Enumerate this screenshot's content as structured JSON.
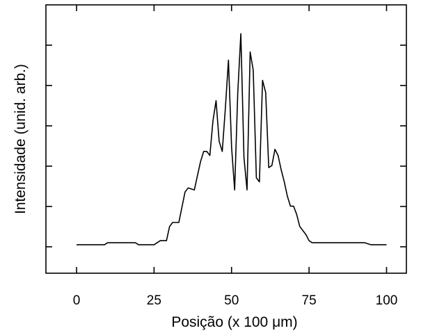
{
  "chart_data": {
    "type": "line",
    "title": "",
    "xlabel": "Posição (x 100 μm)",
    "ylabel": "Intensidade (unid. arb.)",
    "xlim": [
      -10,
      104
    ],
    "ylim": [
      0,
      1.1
    ],
    "x_ticks": [
      0,
      25,
      50,
      75,
      100
    ],
    "x_tick_labels": [
      "0",
      "25",
      "50",
      "75",
      "100"
    ],
    "y_ticks_count": 6,
    "grid": false,
    "legend": "none",
    "series": [
      {
        "color": "#000000",
        "x": [
          0,
          5,
          9,
          10,
          14,
          19,
          20,
          25,
          27,
          29,
          30,
          31,
          33,
          35,
          36,
          38,
          39,
          40,
          41,
          42,
          43,
          44,
          45,
          46,
          47,
          48,
          49,
          50,
          51,
          52,
          53,
          54,
          55,
          56,
          57,
          58,
          59,
          60,
          61,
          62,
          63,
          64,
          65,
          66,
          67,
          68,
          69,
          70,
          71,
          72,
          73,
          74,
          75,
          76,
          77,
          78,
          79,
          80,
          83,
          90,
          93,
          95,
          100
        ],
        "y": [
          0.01,
          0.01,
          0.01,
          0.02,
          0.02,
          0.02,
          0.01,
          0.01,
          0.03,
          0.03,
          0.1,
          0.12,
          0.12,
          0.27,
          0.29,
          0.28,
          0.35,
          0.42,
          0.47,
          0.47,
          0.45,
          0.62,
          0.72,
          0.52,
          0.47,
          0.68,
          0.92,
          0.49,
          0.28,
          0.76,
          1.05,
          0.44,
          0.28,
          0.96,
          0.87,
          0.34,
          0.32,
          0.82,
          0.76,
          0.39,
          0.4,
          0.48,
          0.45,
          0.38,
          0.32,
          0.25,
          0.2,
          0.2,
          0.16,
          0.1,
          0.08,
          0.06,
          0.03,
          0.02,
          0.02,
          0.02,
          0.02,
          0.02,
          0.02,
          0.02,
          0.02,
          0.01,
          0.01
        ]
      }
    ]
  }
}
